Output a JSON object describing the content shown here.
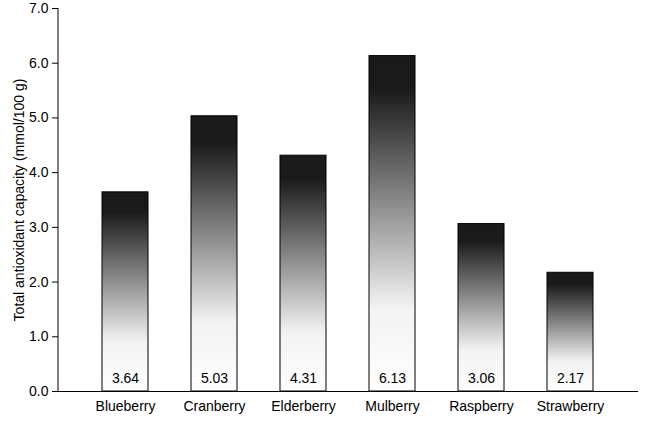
{
  "chart_data": {
    "type": "bar",
    "y_label": "Total antioxidant capacity (mmol/100 g)",
    "categories": [
      "Blueberry",
      "Cranberry",
      "Elderberry",
      "Mulberry",
      "Raspberry",
      "Strawberry"
    ],
    "values": [
      3.64,
      5.03,
      4.31,
      6.13,
      3.06,
      2.17
    ],
    "color": "#1a1a1a",
    "ylim": [
      0,
      7
    ],
    "yticks": [
      0,
      1,
      2,
      3,
      4,
      5,
      6,
      7
    ],
    "grid": false,
    "data_labels": true
  }
}
